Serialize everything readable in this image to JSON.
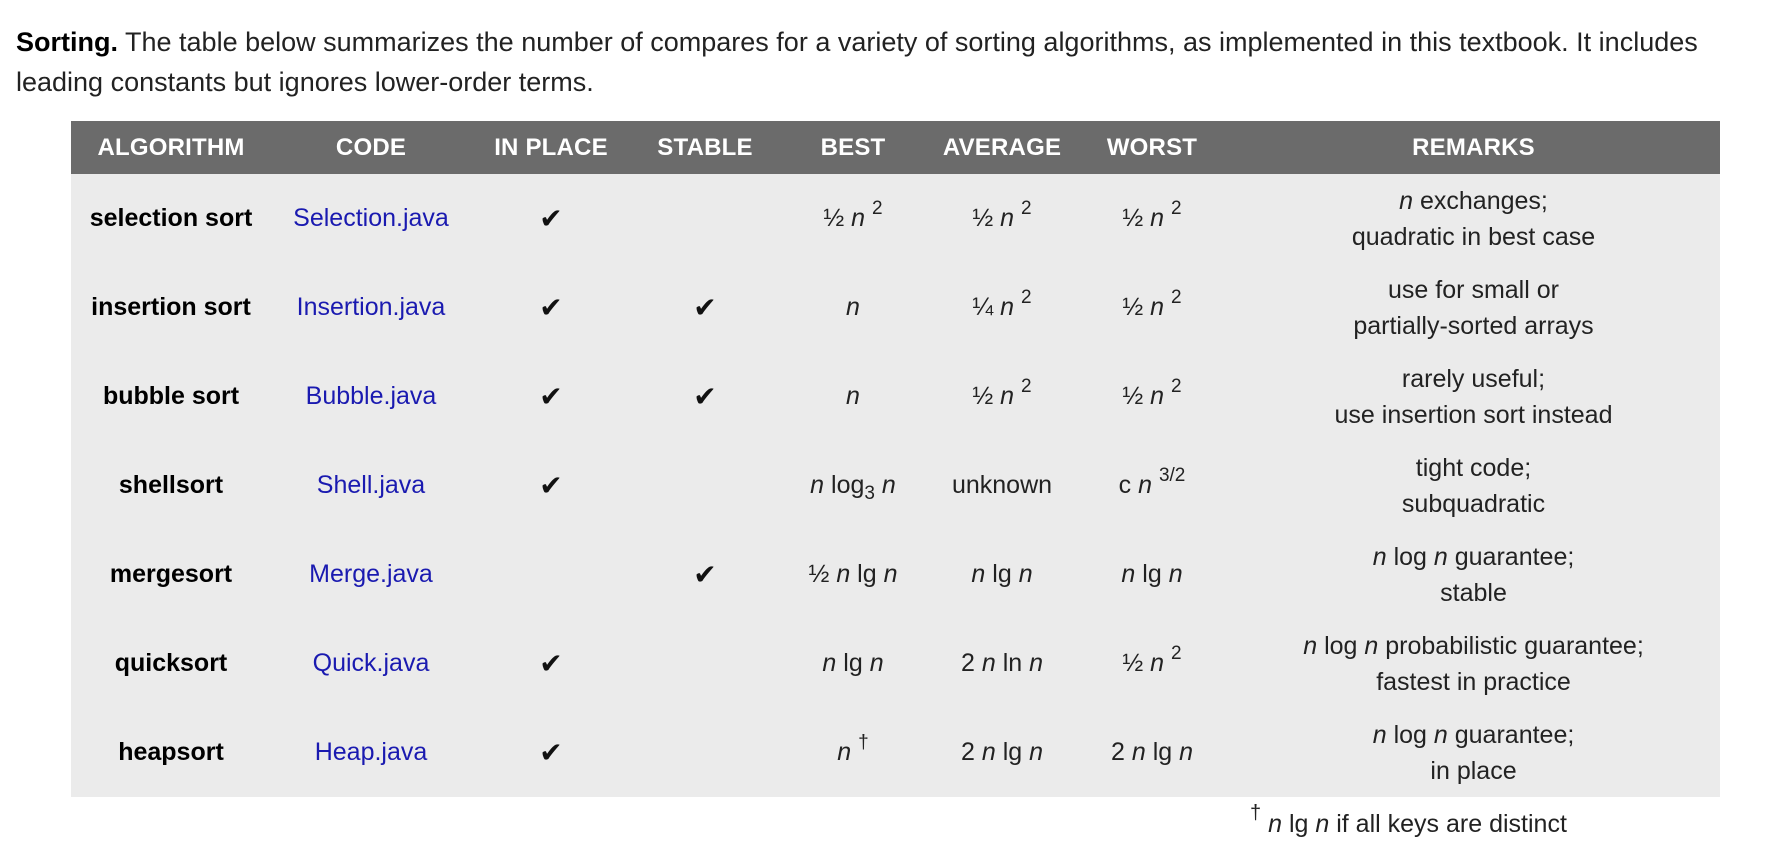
{
  "intro": {
    "heading": "Sorting.",
    "text": " The table below summarizes the number of compares for a variety of sorting algorithms, as implemented in this textbook. It includes leading constants but ignores lower-order terms."
  },
  "table": {
    "headers": [
      "ALGORITHM",
      "CODE",
      "IN PLACE",
      "STABLE",
      "BEST",
      "AVERAGE",
      "WORST",
      "REMARKS"
    ],
    "check_symbol": "✔",
    "rows": [
      {
        "algorithm": "selection sort",
        "code": "Selection.java",
        "in_place": "✔",
        "stable": "",
        "best": {
          "pre": "½",
          "var": "n",
          "sup": "2"
        },
        "average": {
          "pre": "½",
          "var": "n",
          "sup": "2"
        },
        "worst": {
          "pre": "½",
          "var": "n",
          "sup": "2"
        },
        "remarks": [
          "n exchanges;",
          "quadratic in best case"
        ]
      },
      {
        "algorithm": "insertion sort",
        "code": "Insertion.java",
        "in_place": "✔",
        "stable": "✔",
        "best": {
          "pre": "",
          "var": "n",
          "sup": ""
        },
        "average": {
          "pre": "¼",
          "var": "n",
          "sup": "2"
        },
        "worst": {
          "pre": "½",
          "var": "n",
          "sup": "2"
        },
        "remarks": [
          "use for small or",
          "partially-sorted arrays"
        ]
      },
      {
        "algorithm": "bubble sort",
        "code": "Bubble.java",
        "in_place": "✔",
        "stable": "✔",
        "best": {
          "pre": "",
          "var": "n",
          "sup": ""
        },
        "average": {
          "pre": "½",
          "var": "n",
          "sup": "2"
        },
        "worst": {
          "pre": "½",
          "var": "n",
          "sup": "2"
        },
        "remarks": [
          "rarely useful;",
          "use insertion sort instead"
        ]
      },
      {
        "algorithm": "shellsort",
        "code": "Shell.java",
        "in_place": "✔",
        "stable": "",
        "best": {
          "text": "n log3 n"
        },
        "average": {
          "text": "unknown"
        },
        "worst": {
          "pre": "c",
          "var": "n",
          "sup": "3/2"
        },
        "remarks": [
          "tight code;",
          "subquadratic"
        ]
      },
      {
        "algorithm": "mergesort",
        "code": "Merge.java",
        "in_place": "",
        "stable": "✔",
        "best": {
          "text": "½ n lg n"
        },
        "average": {
          "text": "n lg n"
        },
        "worst": {
          "text": "n lg n"
        },
        "remarks": [
          "n log n guarantee;",
          "stable"
        ]
      },
      {
        "algorithm": "quicksort",
        "code": "Quick.java",
        "in_place": "✔",
        "stable": "",
        "best": {
          "text": "n lg n"
        },
        "average": {
          "text": "2 n ln n"
        },
        "worst": {
          "pre": "½",
          "var": "n",
          "sup": "2"
        },
        "remarks": [
          "n log n probabilistic guarantee;",
          "fastest in practice"
        ]
      },
      {
        "algorithm": "heapsort",
        "code": "Heap.java",
        "in_place": "✔",
        "stable": "",
        "best": {
          "pre": "",
          "var": "n",
          "sup": "†"
        },
        "average": {
          "text": "2 n lg n"
        },
        "worst": {
          "text": "2 n lg n"
        },
        "remarks": [
          "n log n guarantee;",
          "in place"
        ]
      }
    ]
  },
  "footnote": {
    "mark": "†",
    "text": "n lg n if all keys are distinct"
  }
}
